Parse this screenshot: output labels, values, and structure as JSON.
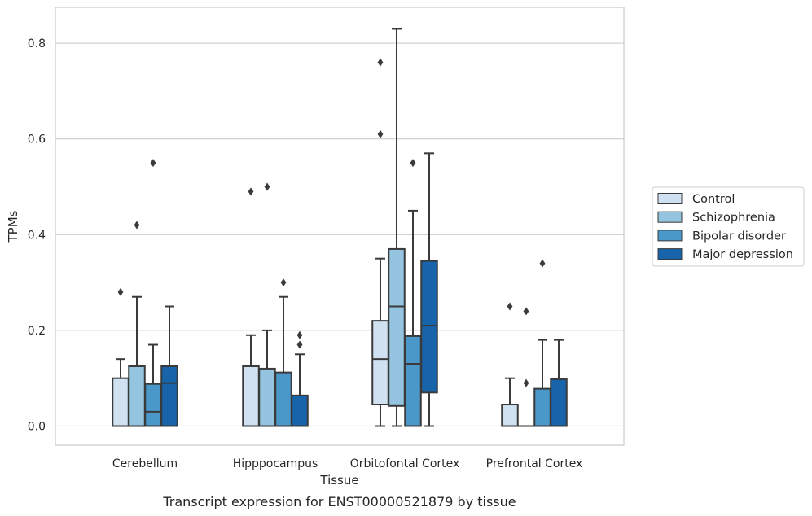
{
  "chart_data": {
    "type": "box",
    "caption": "Transcript expression for ENST00000521879 by tissue",
    "xlabel": "Tissue",
    "ylabel": "TPMs",
    "ylim": [
      -0.04,
      0.875
    ],
    "yticks": [
      0.0,
      0.2,
      0.4,
      0.6,
      0.8
    ],
    "ytick_labels": [
      "0.0",
      "0.2",
      "0.4",
      "0.6",
      "0.8"
    ],
    "grid": true,
    "legend_position": "right",
    "categories": [
      "Cerebellum",
      "Hipppocampus",
      "Orbitofontal Cortex",
      "Prefrontal Cortex"
    ],
    "series": [
      {
        "name": "Control",
        "color": "#d0e1f2",
        "boxes": [
          {
            "whisker_low": 0.0,
            "q1": 0.0,
            "median": 0.0,
            "q3": 0.1,
            "whisker_high": 0.14,
            "outliers": [
              0.28
            ]
          },
          {
            "whisker_low": 0.0,
            "q1": 0.0,
            "median": 0.0,
            "q3": 0.125,
            "whisker_high": 0.19,
            "outliers": [
              0.49
            ]
          },
          {
            "whisker_low": 0.0,
            "q1": 0.045,
            "median": 0.14,
            "q3": 0.22,
            "whisker_high": 0.35,
            "outliers": [
              0.61,
              0.76
            ]
          },
          {
            "whisker_low": 0.0,
            "q1": 0.0,
            "median": 0.0,
            "q3": 0.045,
            "whisker_high": 0.1,
            "outliers": [
              0.25
            ]
          }
        ]
      },
      {
        "name": "Schizophrenia",
        "color": "#94c4df",
        "boxes": [
          {
            "whisker_low": 0.0,
            "q1": 0.0,
            "median": 0.0,
            "q3": 0.125,
            "whisker_high": 0.27,
            "outliers": [
              0.42
            ]
          },
          {
            "whisker_low": 0.0,
            "q1": 0.0,
            "median": 0.0,
            "q3": 0.12,
            "whisker_high": 0.2,
            "outliers": [
              0.5
            ]
          },
          {
            "whisker_low": 0.0,
            "q1": 0.042,
            "median": 0.25,
            "q3": 0.37,
            "whisker_high": 0.83,
            "outliers": []
          },
          {
            "whisker_low": 0.0,
            "q1": 0.0,
            "median": 0.0,
            "q3": 0.0,
            "whisker_high": 0.0,
            "outliers": [
              0.24,
              0.09
            ]
          }
        ]
      },
      {
        "name": "Bipolar disorder",
        "color": "#4a98c9",
        "boxes": [
          {
            "whisker_low": 0.0,
            "q1": 0.0,
            "median": 0.03,
            "q3": 0.088,
            "whisker_high": 0.17,
            "outliers": [
              0.55
            ]
          },
          {
            "whisker_low": 0.0,
            "q1": 0.0,
            "median": 0.0,
            "q3": 0.112,
            "whisker_high": 0.27,
            "outliers": [
              0.3
            ]
          },
          {
            "whisker_low": 0.0,
            "q1": 0.0,
            "median": 0.13,
            "q3": 0.188,
            "whisker_high": 0.45,
            "outliers": [
              0.55
            ]
          },
          {
            "whisker_low": 0.0,
            "q1": 0.0,
            "median": 0.0,
            "q3": 0.078,
            "whisker_high": 0.18,
            "outliers": [
              0.34
            ]
          }
        ]
      },
      {
        "name": "Major depression",
        "color": "#1764ab",
        "boxes": [
          {
            "whisker_low": 0.0,
            "q1": 0.0,
            "median": 0.09,
            "q3": 0.125,
            "whisker_high": 0.25,
            "outliers": []
          },
          {
            "whisker_low": 0.0,
            "q1": 0.0,
            "median": 0.0,
            "q3": 0.064,
            "whisker_high": 0.15,
            "outliers": [
              0.17,
              0.19
            ]
          },
          {
            "whisker_low": 0.0,
            "q1": 0.07,
            "median": 0.21,
            "q3": 0.345,
            "whisker_high": 0.57,
            "outliers": []
          },
          {
            "whisker_low": 0.0,
            "q1": 0.0,
            "median": 0.0,
            "q3": 0.098,
            "whisker_high": 0.18,
            "outliers": []
          }
        ]
      }
    ]
  }
}
